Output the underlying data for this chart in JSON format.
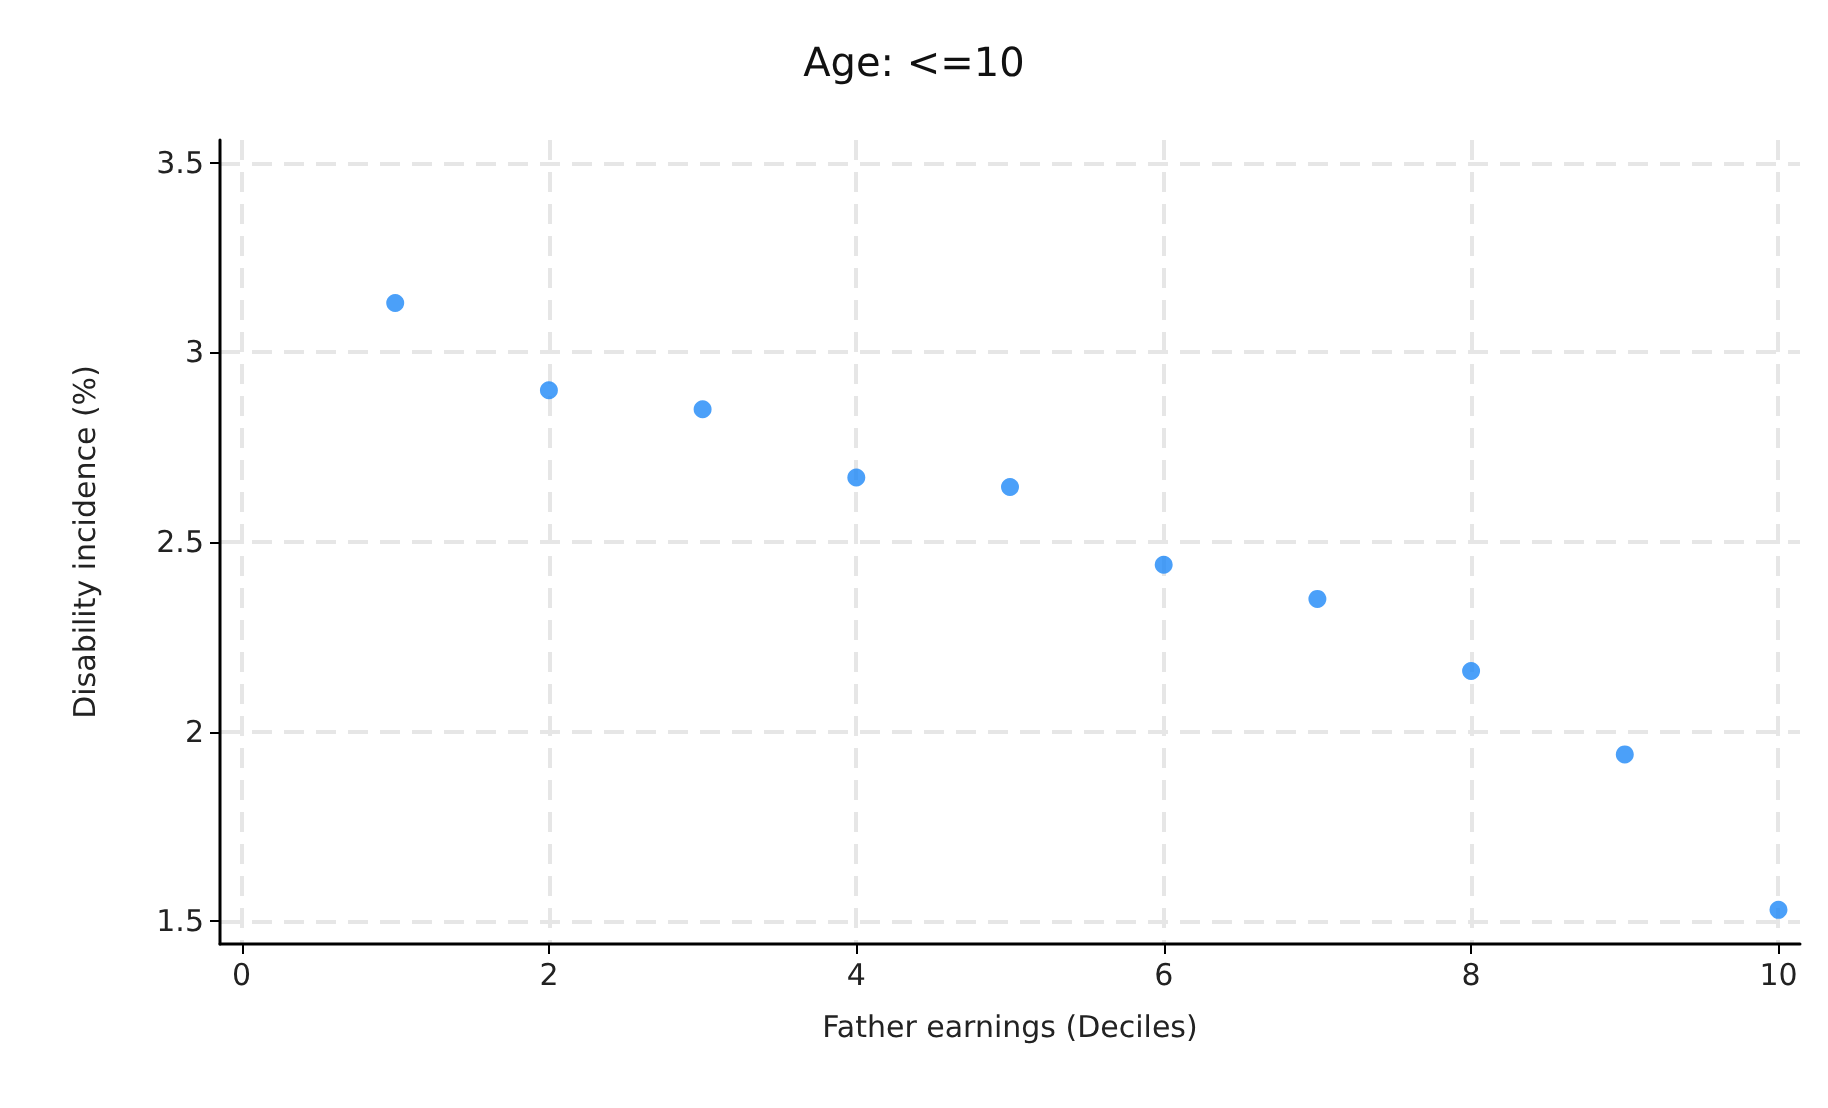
{
  "chart_data": {
    "type": "scatter",
    "title": "Age: <=10",
    "xlabel": "Father earnings (Deciles)",
    "ylabel": "Disability incidence (%)",
    "x": [
      1,
      2,
      3,
      4,
      5,
      6,
      7,
      8,
      9,
      10
    ],
    "series": [
      {
        "color": "#1e88f7",
        "values": [
          3.13,
          2.9,
          2.85,
          2.67,
          2.645,
          2.44,
          2.35,
          2.16,
          1.94,
          1.53
        ]
      }
    ],
    "xlim": [
      -0.14,
      10.14
    ],
    "xticks": [
      0,
      2,
      4,
      6,
      8,
      10
    ],
    "ylim": [
      1.44,
      3.56
    ],
    "yticks": [
      1.5,
      2,
      2.5,
      3,
      3.5
    ],
    "grid": true,
    "marker": "circle"
  }
}
